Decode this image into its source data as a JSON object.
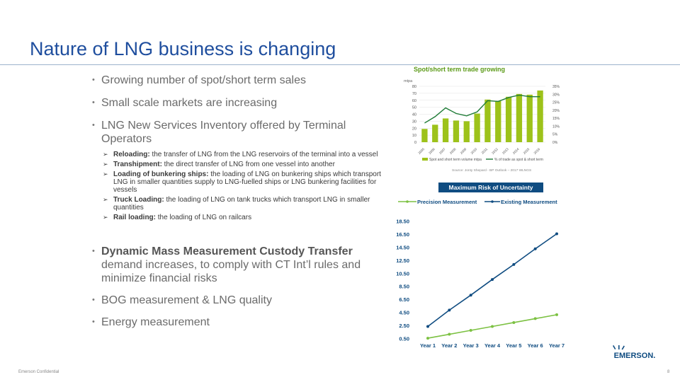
{
  "title": "Nature of LNG business is changing",
  "bullets": {
    "b1": "Growing number of spot/short term sales",
    "b2": "Small scale markets are increasing",
    "b3": "LNG New Services Inventory offered by Terminal Operators",
    "subs": [
      {
        "bold": "Reloading:",
        "text": " the transfer of LNG from the LNG reservoirs of the terminal into a vessel"
      },
      {
        "bold": "Transhipment:",
        "text": " the direct transfer of LNG from one vessel into another"
      },
      {
        "bold": "Loading of bunkering ships:",
        "text": " the loading of LNG on bunkering ships which transport LNG in smaller quantities supply to LNG-fuelled ships or LNG bunkering facilities for vessels"
      },
      {
        "bold": "Truck Loading:",
        "text": " the loading of LNG on tank trucks which transport LNG in smaller quantities"
      },
      {
        "bold": "Rail loading:",
        "text": " the loading of LNG on railcars"
      }
    ],
    "b4_bold": "Dynamic Mass Measurement Custody Transfer",
    "b4_text": " demand increases, to comply with CT Int’l rules and minimize financial risks",
    "b5": "BOG measurement & LNG quality",
    "b6": "Energy measurement"
  },
  "footer": "Emerson Confidential",
  "page_number": "8",
  "logo_text": "EMERSON.",
  "chart_data": [
    {
      "type": "bar",
      "title": "Spot/short term trade growing",
      "ylabel": "mtpa",
      "categories": [
        "2005",
        "2006",
        "2007",
        "2008",
        "2009",
        "2010",
        "2011",
        "2012",
        "2013",
        "2014",
        "2015",
        "2016"
      ],
      "ylim": [
        0,
        80
      ],
      "yticks": [
        "0",
        "10",
        "20",
        "30",
        "40",
        "50",
        "60",
        "70",
        "80"
      ],
      "y2lim": [
        0,
        35
      ],
      "y2ticks": [
        "0%",
        "5%",
        "10%",
        "15%",
        "20%",
        "25%",
        "30%",
        "35%"
      ],
      "series": [
        {
          "name": "Spot and short term volume mtpa",
          "kind": "bar",
          "color": "#9DC21A",
          "values": [
            19,
            25,
            34,
            31,
            30,
            41,
            61,
            59,
            65,
            69,
            68,
            74
          ]
        },
        {
          "name": "% of trade as spot & short term",
          "kind": "line",
          "axis": "right",
          "color": "#1E7B36",
          "values": [
            12,
            16,
            21.5,
            18,
            16.5,
            19,
            26,
            25.5,
            28,
            29.5,
            28.5,
            28.5
          ]
        }
      ],
      "source": "Source: Jonty Shepard - BP Outlook – 2017 WLNGS"
    },
    {
      "type": "line",
      "title": "Maximum Risk of Uncertainty",
      "categories": [
        "Year 1",
        "Year 2",
        "Year 3",
        "Year 4",
        "Year 5",
        "Year 6",
        "Year 7"
      ],
      "ylim": [
        0.5,
        18.5
      ],
      "yticks": [
        "0.50",
        "2.50",
        "4.50",
        "6.50",
        "8.50",
        "10.50",
        "12.50",
        "14.50",
        "16.50",
        "18.50"
      ],
      "legend": "top",
      "series": [
        {
          "name": "Precision Measurement",
          "color": "#7CC142",
          "values": [
            0.6,
            1.2,
            1.8,
            2.4,
            3.0,
            3.6,
            4.2
          ]
        },
        {
          "name": "Existing Measurement",
          "color": "#0F4C81",
          "values": [
            2.4,
            4.9,
            7.2,
            9.6,
            11.9,
            14.3,
            16.6
          ]
        }
      ]
    }
  ]
}
